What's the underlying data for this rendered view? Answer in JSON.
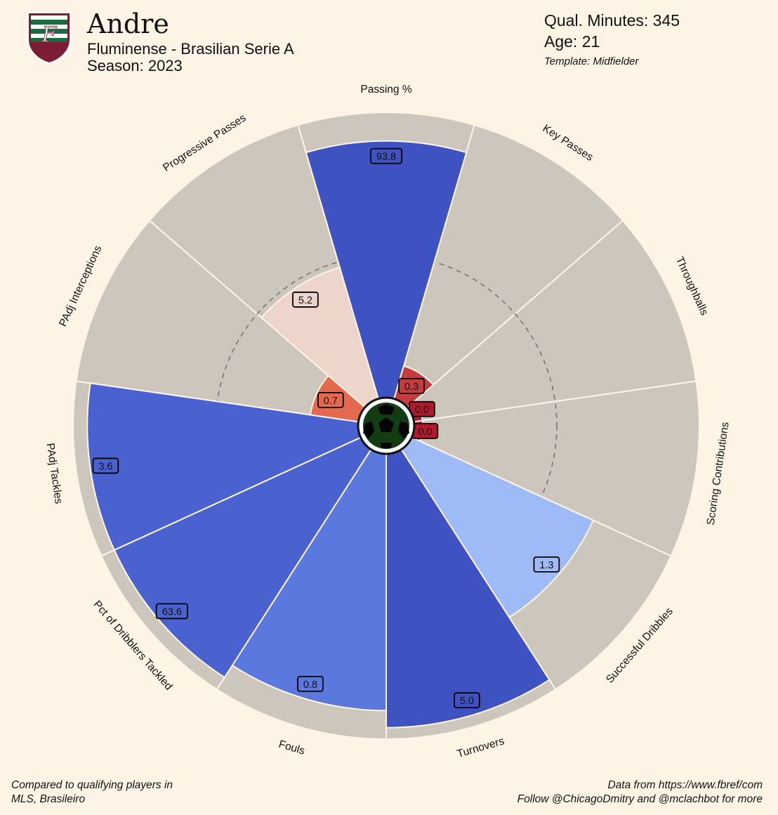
{
  "header": {
    "player_name": "Andre",
    "team_league": "Fluminense - Brasilian Serie A",
    "season": "Season: 2023",
    "minutes": "Qual. Minutes: 345",
    "age": "Age: 21",
    "template": "Template: Midfielder"
  },
  "footer": {
    "compared_line1": "Compared to qualifying players in",
    "compared_line2": "MLS, Brasileiro",
    "source_line1": "Data from https://www.fbref/com",
    "source_line2": "Follow @ChicagoDmitry and @mclachbot for more"
  },
  "colors": {
    "background": "#fdf4e6",
    "slice_background": "#ccc6bd",
    "slice_border": "#fdf4e6",
    "label_text": "#111111"
  },
  "chart_data": {
    "type": "pizza",
    "title": "",
    "metrics": [
      {
        "name": "Passing %",
        "value": "93.8",
        "percentile": 0.9,
        "color": "#3f52c2"
      },
      {
        "name": "Key Passes",
        "value": "0.3",
        "percentile": 0.12,
        "color": "#c53b3e"
      },
      {
        "name": "Throughballs",
        "value": "0.0",
        "percentile": 0.03,
        "color": "#b2182b"
      },
      {
        "name": "Scoring Contributions",
        "value": "0.0",
        "percentile": 0.03,
        "color": "#b2182b"
      },
      {
        "name": "Successful Dribbles",
        "value": "1.3",
        "percentile": 0.7,
        "color": "#9ebbf8"
      },
      {
        "name": "Turnovers",
        "value": "5.0",
        "percentile": 0.96,
        "color": "#3f52c2"
      },
      {
        "name": "Fouls",
        "value": "0.8",
        "percentile": 0.9,
        "color": "#5b78de"
      },
      {
        "name": "Pct of Dribblers Tackled",
        "value": "63.6",
        "percentile": 0.95,
        "color": "#4962d0"
      },
      {
        "name": "PAdj Tackles",
        "value": "3.6",
        "percentile": 0.95,
        "color": "#4962d0"
      },
      {
        "name": "PAdj Interceptions",
        "value": "0.7",
        "percentile": 0.17,
        "color": "#e4694e"
      },
      {
        "name": "Progressive Passes",
        "value": "5.2",
        "percentile": 0.48,
        "color": "#eed5cb"
      }
    ],
    "reference_ring_percentile": 0.5
  }
}
